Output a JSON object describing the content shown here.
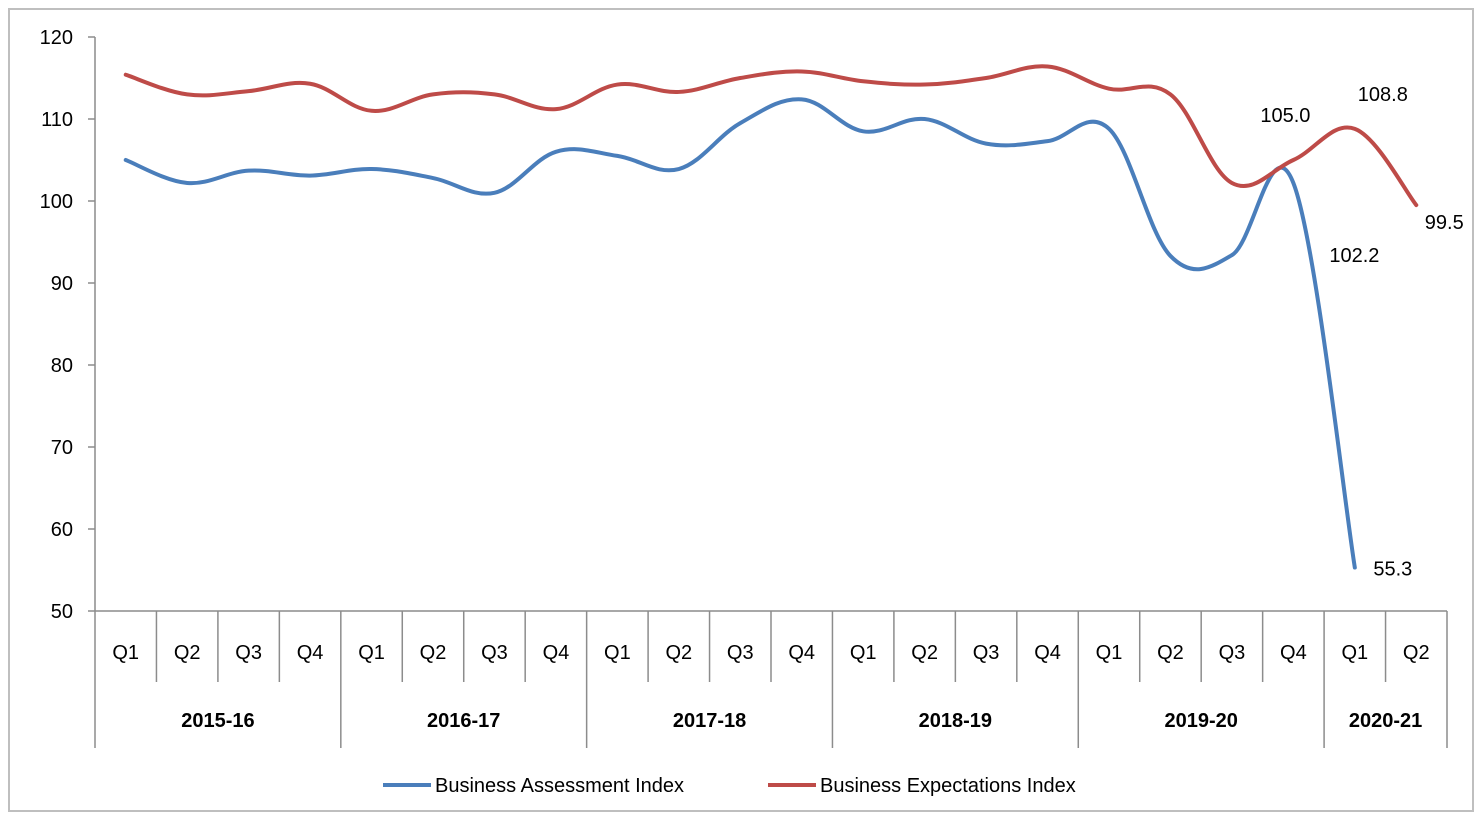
{
  "chart_data": {
    "type": "line",
    "title": "",
    "xlabel": "",
    "ylabel": "",
    "ylim": [
      50,
      120
    ],
    "yticks": [
      50,
      60,
      70,
      80,
      90,
      100,
      110,
      120
    ],
    "grid": false,
    "legend_position": "bottom",
    "year_groups": [
      {
        "label": "2015-16",
        "quarters": [
          "Q1",
          "Q2",
          "Q3",
          "Q4"
        ]
      },
      {
        "label": "2016-17",
        "quarters": [
          "Q1",
          "Q2",
          "Q3",
          "Q4"
        ]
      },
      {
        "label": "2017-18",
        "quarters": [
          "Q1",
          "Q2",
          "Q3",
          "Q4"
        ]
      },
      {
        "label": "2018-19",
        "quarters": [
          "Q1",
          "Q2",
          "Q3",
          "Q4"
        ]
      },
      {
        "label": "2019-20",
        "quarters": [
          "Q1",
          "Q2",
          "Q3",
          "Q4"
        ]
      },
      {
        "label": "2020-21",
        "quarters": [
          "Q1",
          "Q2"
        ]
      }
    ],
    "series": [
      {
        "name": "Business Assessment Index",
        "color": "#4a7ebb",
        "values": [
          105.0,
          102.2,
          103.7,
          103.1,
          103.9,
          102.8,
          101.0,
          106.0,
          105.5,
          103.9,
          109.5,
          112.4,
          108.5,
          110.0,
          107.0,
          107.3,
          108.8,
          93.3,
          93.4,
          102.2,
          55.3,
          null
        ]
      },
      {
        "name": "Business Expectations Index",
        "color": "#be4b48",
        "values": [
          115.4,
          113.0,
          113.4,
          114.3,
          111.0,
          113.0,
          113.0,
          111.2,
          114.2,
          113.3,
          115.0,
          115.8,
          114.6,
          114.2,
          115.0,
          116.4,
          113.7,
          113.0,
          102.2,
          105.0,
          108.8,
          99.5
        ]
      }
    ],
    "data_labels": [
      {
        "series": 1,
        "index": 19,
        "text": "105.0"
      },
      {
        "series": 0,
        "index": 19,
        "text": "102.2"
      },
      {
        "series": 1,
        "index": 20,
        "text": "108.8"
      },
      {
        "series": 1,
        "index": 21,
        "text": "99.5"
      },
      {
        "series": 0,
        "index": 20,
        "text": "55.3"
      }
    ]
  }
}
